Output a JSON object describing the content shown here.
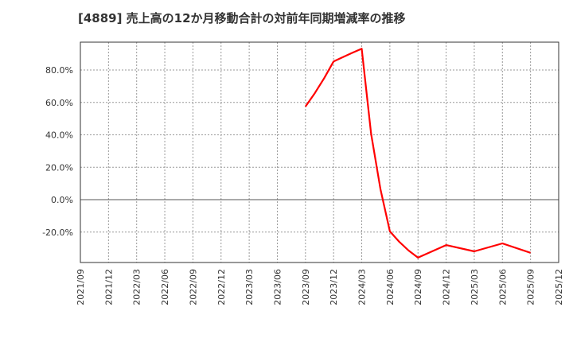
{
  "title": "[4889]  売上高の12か月移動合計の対前年同期増減率の推移",
  "colors": {
    "line": "#ff0000",
    "grid": "#999999",
    "axis": "#333333",
    "zero": "#555555"
  },
  "chart_data": {
    "type": "line",
    "title": "[4889]  売上高の12か月移動合計の対前年同期増減率の推移",
    "xlabel": "",
    "ylabel": "",
    "ylim": [
      -39,
      97
    ],
    "grid": true,
    "legend": null,
    "y_ticks": [
      "80.0%",
      "60.0%",
      "40.0%",
      "20.0%",
      "0.0%",
      "-20.0%"
    ],
    "y_tick_values": [
      80,
      60,
      40,
      20,
      0,
      -20
    ],
    "x_ticks": [
      "2021/09",
      "2021/12",
      "2022/03",
      "2022/06",
      "2022/09",
      "2022/12",
      "2023/03",
      "2023/06",
      "2023/09",
      "2023/12",
      "2024/03",
      "2024/06",
      "2024/09",
      "2024/12",
      "2025/03",
      "2025/06",
      "2025/09",
      "2025/12"
    ],
    "series": [
      {
        "name": "対前年同期増減率",
        "x": [
          "2023/09",
          "2023/10",
          "2023/11",
          "2023/12",
          "2024/01",
          "2024/02",
          "2024/03",
          "2024/04",
          "2024/05",
          "2024/06",
          "2024/07",
          "2024/08",
          "2024/09",
          "2024/12",
          "2025/03",
          "2025/06",
          "2025/09"
        ],
        "values": [
          57.4,
          65.7,
          75.0,
          85.3,
          88.0,
          90.6,
          93.1,
          40.7,
          6.4,
          -19.6,
          -26.0,
          -31.4,
          -35.8,
          -28.0,
          -31.9,
          -27.0,
          -32.8
        ]
      }
    ]
  }
}
